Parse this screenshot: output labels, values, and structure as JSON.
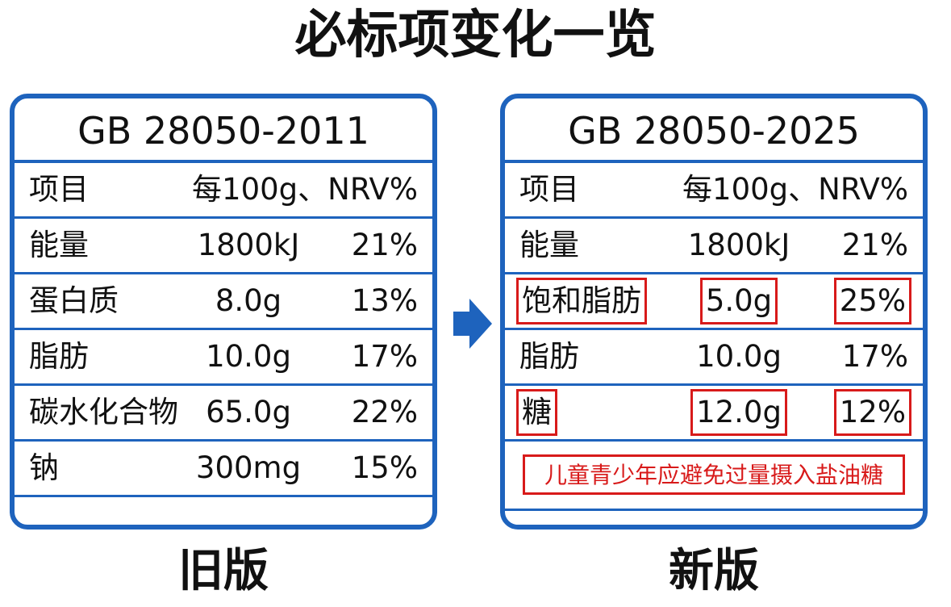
{
  "title": "必标项变化一览",
  "old": {
    "standard": "GB 28050-2011",
    "caption": "旧版",
    "header": {
      "name": "项目",
      "amount": "每100g、NRV%"
    },
    "rows": [
      {
        "name": "能量",
        "amount": "1800kJ",
        "nrv": "21%"
      },
      {
        "name": "蛋白质",
        "amount": "8.0g",
        "nrv": "13%"
      },
      {
        "name": "脂肪",
        "amount": "10.0g",
        "nrv": "17%"
      },
      {
        "name": "碳水化合物",
        "amount": "65.0g",
        "nrv": "22%"
      },
      {
        "name": "钠",
        "amount": "300mg",
        "nrv": "15%"
      }
    ]
  },
  "new": {
    "standard": "GB 28050-2025",
    "caption": "新版",
    "header": {
      "name": "项目",
      "amount": "每100g、NRV%"
    },
    "rows": [
      {
        "name": "能量",
        "amount": "1800kJ",
        "nrv": "21%"
      },
      {
        "name": "饱和脂肪",
        "amount": "5.0g",
        "nrv": "25%",
        "highlighted": true
      },
      {
        "name": "脂肪",
        "amount": "10.0g",
        "nrv": "17%"
      },
      {
        "name": "糖",
        "amount": "12.0g",
        "nrv": "12%",
        "highlighted": true
      }
    ],
    "warning": "儿童青少年应避免过量摄入盐油糖"
  },
  "colors": {
    "border": "#1e63bd",
    "highlight": "#d81a1a",
    "arrow": "#1e63bd"
  }
}
